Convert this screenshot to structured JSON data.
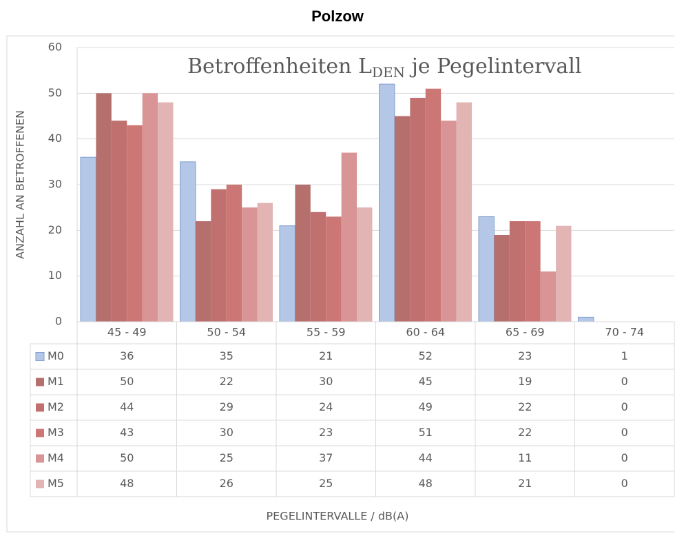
{
  "chart_data": {
    "type": "bar",
    "title": "Polzow",
    "annotation": {
      "text": "Betroffenheiten L",
      "subscript": "DEN",
      "suffix": " je Pegelintervall"
    },
    "y_label": "ANZAHL AN BETROFFENEN",
    "x_label": "PEGELINTERVALLE / dB(A)",
    "categories": [
      "45 - 49",
      "50 - 54",
      "55 - 59",
      "60 - 64",
      "65 - 69",
      "70 - 74"
    ],
    "series": [
      {
        "name": "M0",
        "color": "#b4c7e7",
        "stroke": "#7f9fcf",
        "values": [
          36,
          35,
          21,
          52,
          23,
          1
        ]
      },
      {
        "name": "M1",
        "color": "#b5706e",
        "values": [
          50,
          22,
          30,
          45,
          19,
          0
        ]
      },
      {
        "name": "M2",
        "color": "#c0706f",
        "values": [
          44,
          29,
          24,
          49,
          22,
          0
        ]
      },
      {
        "name": "M3",
        "color": "#cc7775",
        "values": [
          43,
          30,
          23,
          51,
          22,
          0
        ]
      },
      {
        "name": "M4",
        "color": "#d99595",
        "values": [
          50,
          25,
          37,
          44,
          11,
          0
        ]
      },
      {
        "name": "M5",
        "color": "#e2b4b4",
        "values": [
          48,
          26,
          25,
          48,
          21,
          0
        ]
      }
    ],
    "ylim": [
      0,
      60
    ],
    "yticks": [
      0,
      10,
      20,
      30,
      40,
      50,
      60
    ],
    "grid": true,
    "data_table": true
  }
}
